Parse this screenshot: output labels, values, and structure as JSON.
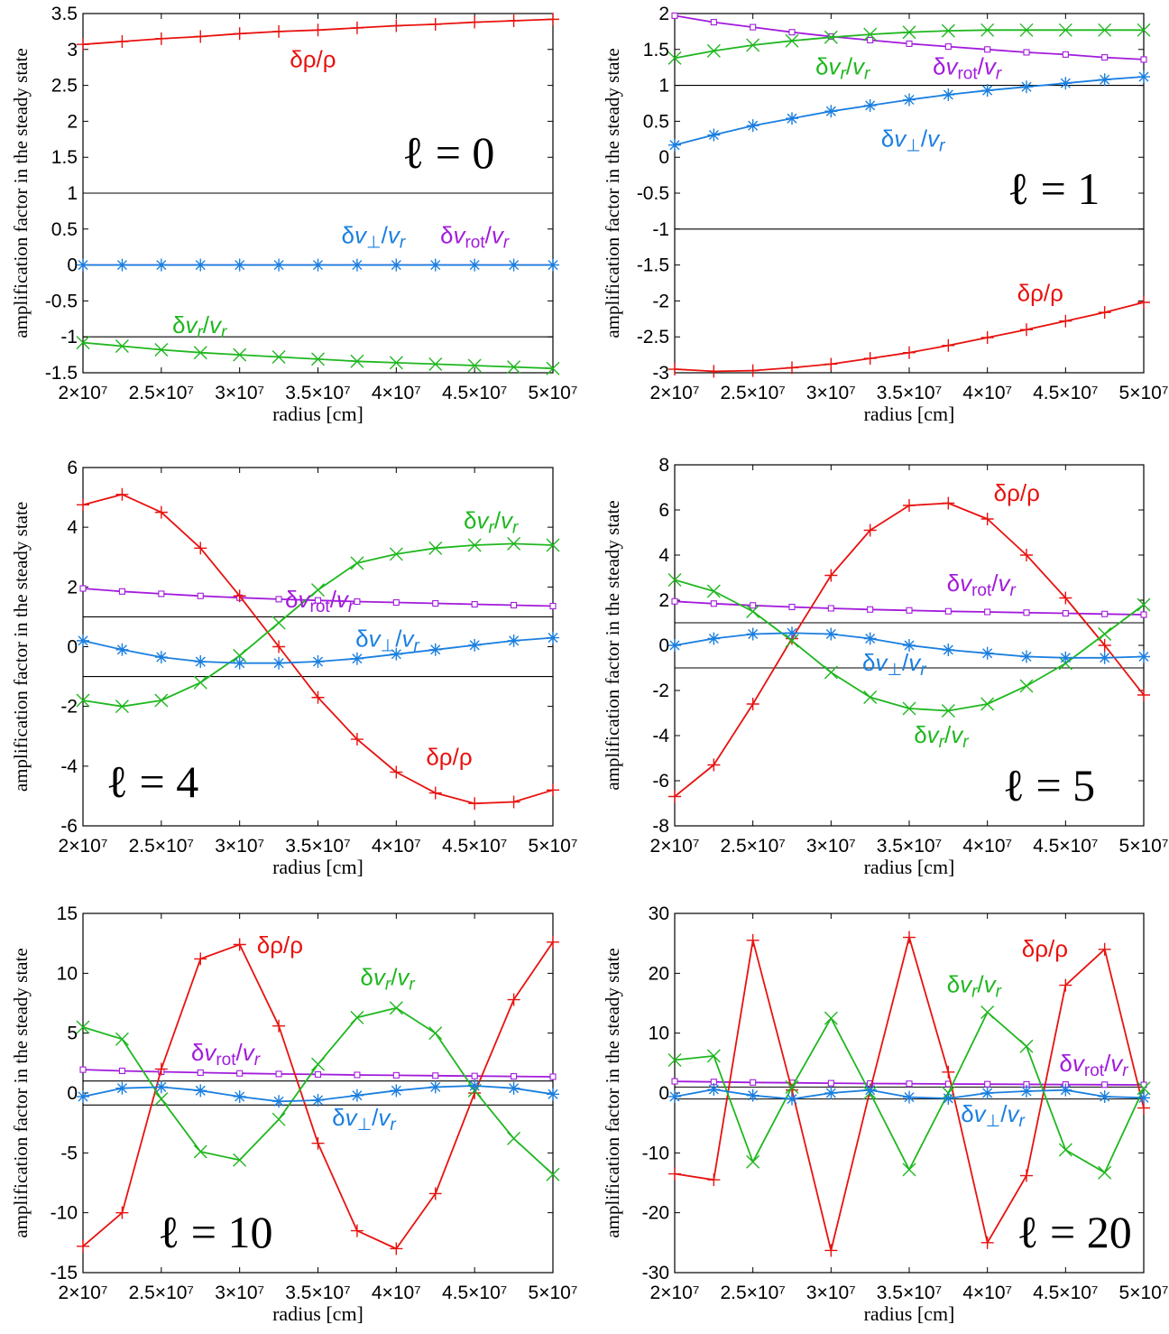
{
  "figure": {
    "ylabel": "amplification factor in the steady state",
    "xlabel": "radius [cm]",
    "colors": {
      "drho": "#e8120f",
      "dvr": "#1fb71f",
      "dvperp": "#1a7fe0",
      "dvrot": "#a21bdc",
      "axes": "#000000"
    },
    "label_text": {
      "drho": "δρ/ρ",
      "dvr": "δvr/vr",
      "dvperp": "δv⊥/vr",
      "dvrot": "δvrot/vr"
    }
  },
  "chart_data": [
    {
      "type": "line",
      "panel_label": "ℓ = 0",
      "xlabel": "radius [cm]",
      "ylabel": "amplification factor in the steady state",
      "xlim": [
        20000000.0,
        50000000.0
      ],
      "ylim": [
        -1.5,
        3.5
      ],
      "x_ticks": [
        "2×10⁷",
        "2.5×10⁷",
        "3×10⁷",
        "3.5×10⁷",
        "4×10⁷",
        "4.5×10⁷",
        "5×10⁷"
      ],
      "y_ticks": [
        "3.5",
        "3",
        "2.5",
        "2",
        "1.5",
        "1",
        "0.5",
        "0",
        "-0.5",
        "-1",
        "-1.5"
      ],
      "reference_lines": [
        1,
        -1
      ],
      "x": [
        20000000.0,
        22500000.0,
        25000000.0,
        27500000.0,
        30000000.0,
        32500000.0,
        35000000.0,
        37500000.0,
        40000000.0,
        42500000.0,
        45000000.0,
        47500000.0,
        50000000.0
      ],
      "series": [
        {
          "key": "drho",
          "name": "δρ/ρ",
          "marker": "plus",
          "values": [
            3.07,
            3.11,
            3.15,
            3.18,
            3.22,
            3.25,
            3.27,
            3.3,
            3.33,
            3.35,
            3.38,
            3.4,
            3.42
          ]
        },
        {
          "key": "dvr",
          "name": "δvr/vr",
          "marker": "x",
          "values": [
            -1.08,
            -1.13,
            -1.18,
            -1.22,
            -1.25,
            -1.28,
            -1.31,
            -1.34,
            -1.36,
            -1.38,
            -1.4,
            -1.42,
            -1.44
          ]
        },
        {
          "key": "dvperp",
          "name": "δv⊥/vr",
          "marker": "star",
          "values": [
            0,
            0,
            0,
            0,
            0,
            0,
            0,
            0,
            0,
            0,
            0,
            0,
            0
          ]
        },
        {
          "key": "dvrot",
          "name": "δvrot/vr",
          "marker": "none",
          "values": [
            0,
            0,
            0,
            0,
            0,
            0,
            0,
            0,
            0,
            0,
            0,
            0,
            0
          ]
        }
      ]
    },
    {
      "type": "line",
      "panel_label": "ℓ = 1",
      "xlabel": "radius [cm]",
      "ylabel": "amplification factor in the steady state",
      "xlim": [
        20000000.0,
        50000000.0
      ],
      "ylim": [
        -3,
        2
      ],
      "x_ticks": [
        "2×10⁷",
        "2.5×10⁷",
        "3×10⁷",
        "3.5×10⁷",
        "4×10⁷",
        "4.5×10⁷",
        "5×10⁷"
      ],
      "y_ticks": [
        "2",
        "1.5",
        "1",
        "0.5",
        "0",
        "-0.5",
        "-1",
        "-1.5",
        "-2",
        "-2.5",
        "-3"
      ],
      "reference_lines": [
        1,
        -1
      ],
      "x": [
        20000000.0,
        22500000.0,
        25000000.0,
        27500000.0,
        30000000.0,
        32500000.0,
        35000000.0,
        37500000.0,
        40000000.0,
        42500000.0,
        45000000.0,
        47500000.0,
        50000000.0
      ],
      "series": [
        {
          "key": "drho",
          "name": "δρ/ρ",
          "marker": "plus",
          "values": [
            -2.95,
            -2.98,
            -2.97,
            -2.93,
            -2.88,
            -2.8,
            -2.72,
            -2.62,
            -2.51,
            -2.4,
            -2.28,
            -2.16,
            -2.02
          ]
        },
        {
          "key": "dvr",
          "name": "δvr/vr",
          "marker": "x",
          "values": [
            1.38,
            1.48,
            1.56,
            1.62,
            1.67,
            1.71,
            1.74,
            1.76,
            1.77,
            1.77,
            1.77,
            1.77,
            1.77
          ]
        },
        {
          "key": "dvperp",
          "name": "δv⊥/vr",
          "marker": "star",
          "values": [
            0.17,
            0.31,
            0.44,
            0.54,
            0.64,
            0.72,
            0.8,
            0.87,
            0.93,
            0.98,
            1.03,
            1.08,
            1.12
          ]
        },
        {
          "key": "dvrot",
          "name": "δvrot/vr",
          "marker": "square",
          "values": [
            1.97,
            1.88,
            1.81,
            1.74,
            1.68,
            1.63,
            1.58,
            1.54,
            1.5,
            1.46,
            1.43,
            1.39,
            1.36
          ]
        }
      ]
    },
    {
      "type": "line",
      "panel_label": "ℓ = 4",
      "xlabel": "radius [cm]",
      "ylabel": "amplification factor in the steady state",
      "xlim": [
        20000000.0,
        50000000.0
      ],
      "ylim": [
        -6,
        6
      ],
      "x_ticks": [
        "2×10⁷",
        "2.5×10⁷",
        "3×10⁷",
        "3.5×10⁷",
        "4×10⁷",
        "4.5×10⁷",
        "5×10⁷"
      ],
      "y_ticks": [
        "6",
        "4",
        "2",
        "0",
        "-2",
        "-4",
        "-6"
      ],
      "reference_lines": [
        1,
        -1
      ],
      "x": [
        20000000.0,
        22500000.0,
        25000000.0,
        27500000.0,
        30000000.0,
        32500000.0,
        35000000.0,
        37500000.0,
        40000000.0,
        42500000.0,
        45000000.0,
        47500000.0,
        50000000.0
      ],
      "series": [
        {
          "key": "drho",
          "name": "δρ/ρ",
          "marker": "plus",
          "values": [
            4.75,
            5.1,
            4.5,
            3.3,
            1.7,
            0.0,
            -1.7,
            -3.1,
            -4.2,
            -4.9,
            -5.25,
            -5.2,
            -4.8
          ]
        },
        {
          "key": "dvr",
          "name": "δvr/vr",
          "marker": "x",
          "values": [
            -1.8,
            -2.0,
            -1.8,
            -1.2,
            -0.3,
            0.8,
            1.9,
            2.8,
            3.1,
            3.3,
            3.4,
            3.45,
            3.4
          ]
        },
        {
          "key": "dvperp",
          "name": "δv⊥/vr",
          "marker": "star",
          "values": [
            0.2,
            -0.1,
            -0.35,
            -0.5,
            -0.55,
            -0.55,
            -0.5,
            -0.4,
            -0.25,
            -0.1,
            0.05,
            0.2,
            0.3
          ]
        },
        {
          "key": "dvrot",
          "name": "δvrot/vr",
          "marker": "square",
          "values": [
            1.95,
            1.85,
            1.77,
            1.7,
            1.64,
            1.59,
            1.55,
            1.51,
            1.48,
            1.45,
            1.42,
            1.39,
            1.36
          ]
        }
      ]
    },
    {
      "type": "line",
      "panel_label": "ℓ = 5",
      "xlabel": "radius [cm]",
      "ylabel": "amplification factor in the steady state",
      "xlim": [
        20000000.0,
        50000000.0
      ],
      "ylim": [
        -8,
        8
      ],
      "x_ticks": [
        "2×10⁷",
        "2.5×10⁷",
        "3×10⁷",
        "3.5×10⁷",
        "4×10⁷",
        "4.5×10⁷",
        "5×10⁷"
      ],
      "y_ticks": [
        "8",
        "6",
        "4",
        "2",
        "0",
        "-2",
        "-4",
        "-6",
        "-8"
      ],
      "reference_lines": [
        1,
        -1
      ],
      "x": [
        20000000.0,
        22500000.0,
        25000000.0,
        27500000.0,
        30000000.0,
        32500000.0,
        35000000.0,
        37500000.0,
        40000000.0,
        42500000.0,
        45000000.0,
        47500000.0,
        50000000.0
      ],
      "series": [
        {
          "key": "drho",
          "name": "δρ/ρ",
          "marker": "plus",
          "values": [
            -6.7,
            -5.3,
            -2.6,
            0.3,
            3.1,
            5.1,
            6.2,
            6.3,
            5.6,
            4.0,
            2.1,
            0.0,
            -2.2
          ]
        },
        {
          "key": "dvr",
          "name": "δvr/vr",
          "marker": "x",
          "values": [
            2.9,
            2.4,
            1.5,
            0.2,
            -1.2,
            -2.3,
            -2.8,
            -2.9,
            -2.6,
            -1.8,
            -0.8,
            0.5,
            1.8
          ]
        },
        {
          "key": "dvperp",
          "name": "δv⊥/vr",
          "marker": "star",
          "values": [
            0.0,
            0.3,
            0.5,
            0.55,
            0.5,
            0.3,
            0.0,
            -0.2,
            -0.35,
            -0.5,
            -0.55,
            -0.55,
            -0.5
          ]
        },
        {
          "key": "dvrot",
          "name": "δvrot/vr",
          "marker": "square",
          "values": [
            1.95,
            1.85,
            1.77,
            1.7,
            1.64,
            1.59,
            1.55,
            1.51,
            1.48,
            1.45,
            1.42,
            1.39,
            1.36
          ]
        }
      ]
    },
    {
      "type": "line",
      "panel_label": "ℓ = 10",
      "xlabel": "radius [cm]",
      "ylabel": "amplification factor in the steady state",
      "xlim": [
        20000000.0,
        50000000.0
      ],
      "ylim": [
        -15,
        15
      ],
      "x_ticks": [
        "2×10⁷",
        "2.5×10⁷",
        "3×10⁷",
        "3.5×10⁷",
        "4×10⁷",
        "4.5×10⁷",
        "5×10⁷"
      ],
      "y_ticks": [
        "15",
        "10",
        "5",
        "0",
        "-5",
        "-10",
        "-15"
      ],
      "reference_lines": [
        1,
        -1
      ],
      "x": [
        20000000.0,
        22500000.0,
        25000000.0,
        27500000.0,
        30000000.0,
        32500000.0,
        35000000.0,
        37500000.0,
        40000000.0,
        42500000.0,
        45000000.0,
        47500000.0,
        50000000.0
      ],
      "series": [
        {
          "key": "drho",
          "name": "δρ/ρ",
          "marker": "plus",
          "values": [
            -12.8,
            -10.0,
            2.0,
            11.2,
            12.4,
            5.6,
            -4.2,
            -11.5,
            -13.0,
            -8.4,
            0.0,
            7.8,
            12.6
          ]
        },
        {
          "key": "dvr",
          "name": "δvr/vr",
          "marker": "x",
          "values": [
            5.5,
            4.5,
            -0.5,
            -4.9,
            -5.6,
            -2.2,
            2.4,
            6.3,
            7.1,
            5.0,
            0.2,
            -3.8,
            -6.8
          ]
        },
        {
          "key": "dvperp",
          "name": "δv⊥/vr",
          "marker": "star",
          "values": [
            -0.3,
            0.4,
            0.5,
            0.2,
            -0.3,
            -0.7,
            -0.6,
            -0.2,
            0.2,
            0.5,
            0.6,
            0.4,
            -0.1
          ]
        },
        {
          "key": "dvrot",
          "name": "δvrot/vr",
          "marker": "square",
          "values": [
            1.95,
            1.85,
            1.77,
            1.7,
            1.64,
            1.59,
            1.55,
            1.51,
            1.48,
            1.45,
            1.42,
            1.39,
            1.36
          ]
        }
      ]
    },
    {
      "type": "line",
      "panel_label": "ℓ = 20",
      "xlabel": "radius [cm]",
      "ylabel": "amplification factor in the steady state",
      "xlim": [
        20000000.0,
        50000000.0
      ],
      "ylim": [
        -30,
        30
      ],
      "x_ticks": [
        "2×10⁷",
        "2.5×10⁷",
        "3×10⁷",
        "3.5×10⁷",
        "4×10⁷",
        "4.5×10⁷",
        "5×10⁷"
      ],
      "y_ticks": [
        "30",
        "20",
        "10",
        "0",
        "-10",
        "-20",
        "-30"
      ],
      "reference_lines": [
        1,
        -1
      ],
      "x": [
        20000000.0,
        22500000.0,
        25000000.0,
        27500000.0,
        30000000.0,
        32500000.0,
        35000000.0,
        37500000.0,
        40000000.0,
        42500000.0,
        45000000.0,
        47500000.0,
        50000000.0
      ],
      "series": [
        {
          "key": "drho",
          "name": "δρ/ρ",
          "marker": "plus",
          "values": [
            -13.5,
            -14.5,
            25.5,
            0.5,
            -26.3,
            0.5,
            26.0,
            3.5,
            -25.0,
            -13.8,
            18.0,
            24.0,
            -2.5
          ]
        },
        {
          "key": "dvr",
          "name": "δvr/vr",
          "marker": "x",
          "values": [
            5.5,
            6.2,
            -11.5,
            1.0,
            12.5,
            0.0,
            -12.8,
            0.0,
            13.5,
            7.8,
            -9.5,
            -13.3,
            0.8
          ]
        },
        {
          "key": "dvperp",
          "name": "δv⊥/vr",
          "marker": "star",
          "values": [
            -0.6,
            0.6,
            -0.4,
            -1.0,
            0.0,
            0.5,
            -0.7,
            -0.9,
            0.0,
            0.3,
            0.5,
            -0.6,
            -0.8
          ]
        },
        {
          "key": "dvrot",
          "name": "δvrot/vr",
          "marker": "square",
          "values": [
            1.95,
            1.85,
            1.77,
            1.7,
            1.64,
            1.59,
            1.55,
            1.51,
            1.48,
            1.45,
            1.42,
            1.39,
            1.36
          ]
        }
      ]
    }
  ]
}
